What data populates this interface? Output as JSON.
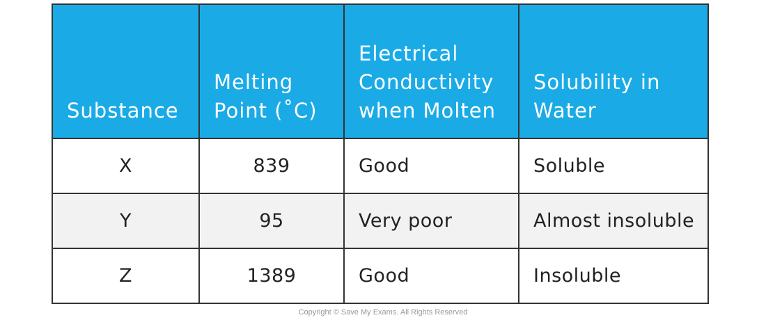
{
  "table": {
    "headers": [
      [
        "Substance"
      ],
      [
        "Melting",
        "Point (˚C)"
      ],
      [
        "Electrical",
        "Conductivity",
        "when Molten"
      ],
      [
        "Solubility in",
        "Water"
      ]
    ],
    "rows": [
      {
        "substance": "X",
        "melting_point": "839",
        "conductivity": "Good",
        "solubility": "Soluble"
      },
      {
        "substance": "Y",
        "melting_point": "95",
        "conductivity": "Very poor",
        "solubility": "Almost insoluble"
      },
      {
        "substance": "Z",
        "melting_point": "1389",
        "conductivity": "Good",
        "solubility": "Insoluble"
      }
    ],
    "colors": {
      "header_bg": "#1aabe6",
      "header_text": "#ffffff",
      "alt_row_bg": "#f2f2f2",
      "border": "#333333"
    }
  },
  "footer": {
    "copyright": "Copyright © Save My Exams. All Rights Reserved"
  }
}
